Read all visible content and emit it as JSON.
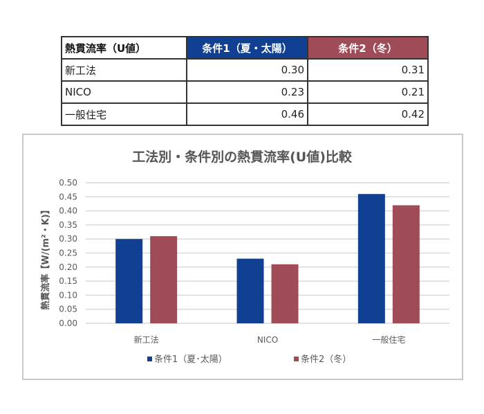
{
  "table": {
    "headers": [
      "熱貫流率（U値）",
      "条件1（夏・太陽）",
      "条件2（冬）"
    ],
    "rows": [
      {
        "label": "新工法",
        "v1": "0.30",
        "v2": "0.31"
      },
      {
        "label": "NICO",
        "v1": "0.23",
        "v2": "0.21"
      },
      {
        "label": "一般住宅",
        "v1": "0.46",
        "v2": "0.42"
      }
    ]
  },
  "chart_data": {
    "type": "bar",
    "title": "工法別・条件別の熱貫流率(U値)比較",
    "xlabel": "",
    "ylabel": "熱貫流率【W/(m²・K)】",
    "categories": [
      "新工法",
      "NICO",
      "一般住宅"
    ],
    "series": [
      {
        "name": "条件1（夏･太陽）",
        "values": [
          0.3,
          0.23,
          0.46
        ],
        "color": "#113f91"
      },
      {
        "name": "条件2（冬）",
        "values": [
          0.31,
          0.21,
          0.42
        ],
        "color": "#a04c58"
      }
    ],
    "ylim": [
      0,
      0.5
    ],
    "yticks": [
      "0.00",
      "0.05",
      "0.10",
      "0.15",
      "0.20",
      "0.25",
      "0.30",
      "0.35",
      "0.40",
      "0.45",
      "0.50"
    ],
    "grid": true,
    "legend": "bottom"
  }
}
